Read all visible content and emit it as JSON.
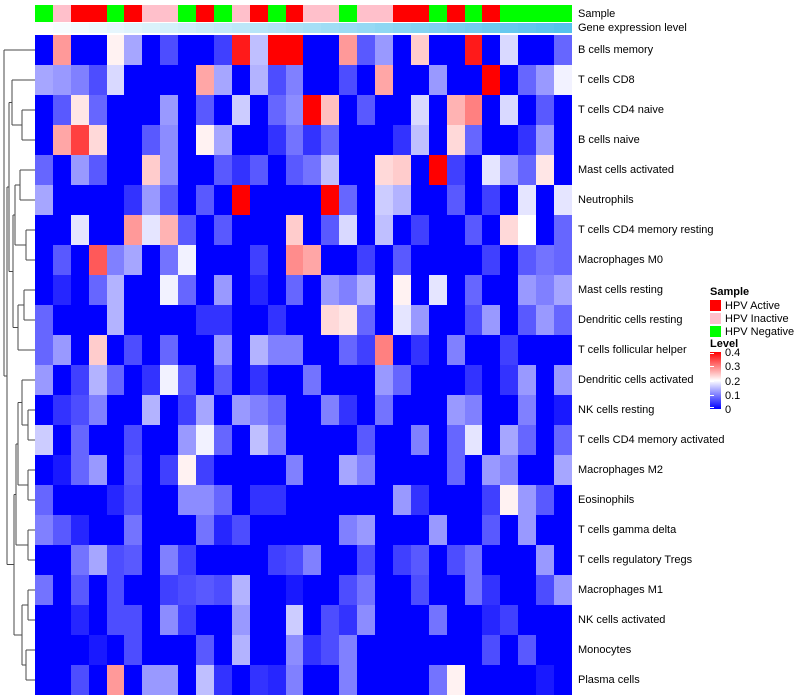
{
  "annotations": {
    "sample_label": "Sample",
    "gene_label": "Gene expression level",
    "sample_values": [
      "negative",
      "inactive",
      "active",
      "active",
      "negative",
      "active",
      "inactive",
      "inactive",
      "negative",
      "active",
      "negative",
      "inactive",
      "active",
      "negative",
      "active",
      "inactive",
      "inactive",
      "negative",
      "inactive",
      "inactive",
      "active",
      "active",
      "negative",
      "active",
      "negative",
      "active",
      "negative",
      "negative",
      "negative",
      "negative"
    ],
    "sample_colors": {
      "active": "#FF0000",
      "inactive": "#FFC0CB",
      "negative": "#00FF00"
    },
    "gene_gradient": {
      "start": "#FDFEFF",
      "end": "#55C2ED"
    }
  },
  "legend": {
    "sample_title": "Sample",
    "sample_items": [
      {
        "label": "HPV Active",
        "color": "#FF0000"
      },
      {
        "label": "HPV Inactive",
        "color": "#FFC0CB"
      },
      {
        "label": "HPV Negative",
        "color": "#00FF00"
      }
    ],
    "level_title": "Level",
    "level_ticks": [
      "0.4",
      "0.3",
      "0.2",
      "0.1",
      "0"
    ]
  },
  "chart_data": {
    "type": "heatmap",
    "n_cols": 30,
    "value_domain": [
      0,
      0.4
    ],
    "colormap": {
      "low": "#0000FF",
      "mid": "#FFFFFF",
      "high": "#FF0000",
      "mid_value": 0.2
    },
    "rows": [
      "B cells memory",
      "T cells CD8",
      "T cells CD4 naive",
      "B cells naive",
      "Mast cells activated",
      "Neutrophils",
      "T cells CD4 memory resting",
      "Macrophages M0",
      "Mast cells resting",
      "Dendritic cells resting",
      "T cells follicular helper",
      "Dendritic cells activated",
      "NK cells resting",
      "T cells CD4 memory activated",
      "Macrophages M2",
      "Eosinophils",
      "T cells gamma delta",
      "T cells regulatory  Tregs",
      "Macrophages M1",
      "NK cells activated",
      "Monocytes",
      "Plasma cells"
    ],
    "values": [
      [
        0,
        0.28,
        0,
        0,
        0.21,
        0.13,
        0,
        0.06,
        0,
        0,
        0.05,
        0.38,
        0.15,
        0.4,
        0.4,
        0,
        0,
        0.28,
        0.07,
        0.12,
        0,
        0.24,
        0,
        0,
        0.38,
        0,
        0.17,
        0,
        0,
        0.08
      ],
      [
        0.13,
        0.12,
        0.1,
        0.06,
        0.17,
        0,
        0,
        0,
        0,
        0.27,
        0.13,
        0,
        0.14,
        0.06,
        0.1,
        0,
        0,
        0.06,
        0,
        0.27,
        0,
        0,
        0.12,
        0,
        0,
        0.4,
        0,
        0.08,
        0.12,
        0.19
      ],
      [
        0,
        0.07,
        0.22,
        0.08,
        0,
        0,
        0,
        0.12,
        0,
        0.07,
        0,
        0.16,
        0,
        0.08,
        0.11,
        0.4,
        0.25,
        0,
        0.07,
        0,
        0,
        0.17,
        0,
        0.26,
        0.3,
        0,
        0.17,
        0,
        0.07,
        0
      ],
      [
        0,
        0.27,
        0.35,
        0.23,
        0,
        0,
        0.07,
        0.11,
        0,
        0.21,
        0.13,
        0,
        0,
        0.04,
        0.09,
        0.04,
        0.08,
        0,
        0,
        0,
        0.04,
        0.15,
        0,
        0.23,
        0.08,
        0,
        0,
        0.04,
        0.12,
        0
      ],
      [
        0.08,
        0,
        0.12,
        0.07,
        0,
        0,
        0.24,
        0.11,
        0,
        0,
        0.07,
        0.04,
        0.07,
        0,
        0.07,
        0.09,
        0.15,
        0,
        0,
        0.23,
        0.24,
        0,
        0.4,
        0.05,
        0,
        0.18,
        0.12,
        0.08,
        0.22,
        0
      ],
      [
        0.13,
        0,
        0,
        0,
        0,
        0.04,
        0.12,
        0.07,
        0,
        0.07,
        0,
        0.4,
        0,
        0,
        0,
        0,
        0.4,
        0.08,
        0,
        0.16,
        0.14,
        0,
        0,
        0.07,
        0,
        0.05,
        0,
        0.18,
        0,
        0.18
      ],
      [
        0,
        0,
        0.18,
        0,
        0,
        0.28,
        0.18,
        0.26,
        0.07,
        0,
        0.07,
        0,
        0,
        0,
        0.24,
        0,
        0.07,
        0.17,
        0,
        0.15,
        0,
        0.05,
        0,
        0,
        0.07,
        0,
        0.23,
        0.2,
        0,
        0.08
      ],
      [
        0,
        0.07,
        0,
        0.33,
        0.1,
        0.13,
        0,
        0.09,
        0.19,
        0,
        0,
        0,
        0.05,
        0,
        0.29,
        0.27,
        0,
        0,
        0.05,
        0,
        0.07,
        0,
        0,
        0,
        0,
        0.05,
        0,
        0.07,
        0.09,
        0.08
      ],
      [
        0,
        0.03,
        0,
        0.08,
        0.14,
        0,
        0,
        0.19,
        0.08,
        0,
        0.12,
        0,
        0.03,
        0,
        0.08,
        0,
        0.12,
        0.1,
        0.14,
        0,
        0.21,
        0,
        0.18,
        0,
        0.08,
        0,
        0,
        0.12,
        0.1,
        0.13
      ],
      [
        0.08,
        0,
        0,
        0,
        0.14,
        0,
        0,
        0,
        0,
        0.04,
        0.04,
        0,
        0,
        0.04,
        0,
        0,
        0.23,
        0.22,
        0.08,
        0,
        0.18,
        0.12,
        0,
        0,
        0.06,
        0.12,
        0,
        0.07,
        0.12,
        0.08
      ],
      [
        0.08,
        0.12,
        0,
        0.24,
        0,
        0.06,
        0,
        0.08,
        0,
        0,
        0.12,
        0,
        0.14,
        0.1,
        0.1,
        0,
        0,
        0.08,
        0.05,
        0.3,
        0,
        0.04,
        0,
        0.1,
        0,
        0,
        0.05,
        0,
        0,
        0
      ],
      [
        0.12,
        0,
        0.05,
        0.14,
        0.08,
        0,
        0.04,
        0.19,
        0.07,
        0,
        0.07,
        0,
        0.04,
        0,
        0,
        0.09,
        0,
        0,
        0,
        0.12,
        0.08,
        0,
        0,
        0,
        0.04,
        0,
        0.04,
        0.12,
        0,
        0.12
      ],
      [
        0,
        0.04,
        0.06,
        0.1,
        0,
        0,
        0.14,
        0,
        0.05,
        0.13,
        0,
        0.12,
        0.1,
        0.08,
        0,
        0,
        0.1,
        0.04,
        0,
        0.09,
        0,
        0,
        0,
        0.12,
        0.1,
        0,
        0,
        0.1,
        0,
        0.02
      ],
      [
        0.16,
        0,
        0.08,
        0,
        0,
        0.06,
        0,
        0,
        0.12,
        0.19,
        0.08,
        0,
        0.15,
        0.1,
        0,
        0,
        0,
        0,
        0.07,
        0,
        0,
        0.1,
        0,
        0.08,
        0.18,
        0,
        0.13,
        0.08,
        0,
        0.08
      ],
      [
        0,
        0.02,
        0.08,
        0.12,
        0,
        0.07,
        0,
        0.05,
        0.21,
        0.05,
        0,
        0,
        0,
        0,
        0.1,
        0,
        0,
        0.13,
        0.1,
        0,
        0,
        0,
        0,
        0.08,
        0,
        0.12,
        0.1,
        0,
        0,
        0.13
      ],
      [
        0.08,
        0,
        0,
        0,
        0.03,
        0.06,
        0,
        0,
        0.11,
        0.11,
        0.08,
        0,
        0.04,
        0.04,
        0,
        0,
        0,
        0,
        0,
        0,
        0.12,
        0.04,
        0,
        0,
        0,
        0.05,
        0.21,
        0.12,
        0.07,
        0
      ],
      [
        0.1,
        0.07,
        0.03,
        0,
        0,
        0.09,
        0,
        0,
        0,
        0.09,
        0.03,
        0.06,
        0,
        0,
        0,
        0,
        0,
        0.1,
        0.12,
        0,
        0,
        0,
        0.12,
        0,
        0,
        0.07,
        0,
        0.12,
        0,
        0
      ],
      [
        0,
        0,
        0.09,
        0.13,
        0.06,
        0.07,
        0,
        0.1,
        0.05,
        0,
        0,
        0,
        0,
        0.05,
        0.06,
        0.1,
        0,
        0,
        0.06,
        0,
        0.05,
        0.07,
        0,
        0.06,
        0.09,
        0,
        0,
        0,
        0.12,
        0
      ],
      [
        0.09,
        0,
        0.07,
        0,
        0.06,
        0,
        0,
        0.05,
        0.06,
        0.07,
        0.06,
        0.14,
        0,
        0,
        0.02,
        0,
        0,
        0.06,
        0.09,
        0,
        0,
        0.06,
        0,
        0,
        0.09,
        0.04,
        0,
        0,
        0.06,
        0.12
      ],
      [
        0,
        0,
        0.03,
        0,
        0.06,
        0.06,
        0,
        0.11,
        0.05,
        0,
        0,
        0.12,
        0,
        0,
        0.16,
        0,
        0.06,
        0.04,
        0.11,
        0,
        0,
        0,
        0.09,
        0,
        0,
        0.03,
        0.05,
        0,
        0,
        0
      ],
      [
        0,
        0,
        0,
        0.02,
        0,
        0.06,
        0,
        0,
        0,
        0.07,
        0,
        0.14,
        0,
        0,
        0.11,
        0.04,
        0.06,
        0.1,
        0,
        0,
        0,
        0,
        0,
        0,
        0,
        0.06,
        0,
        0.07,
        0,
        0
      ],
      [
        0,
        0,
        0.06,
        0,
        0.28,
        0,
        0.12,
        0.12,
        0,
        0.15,
        0.04,
        0,
        0.04,
        0.03,
        0.1,
        0,
        0,
        0.1,
        0,
        0,
        0,
        0,
        0.09,
        0.21,
        0,
        0,
        0,
        0,
        0.02,
        0
      ]
    ],
    "dendrogram_merges": [
      {
        "a": "L3",
        "b": "L4",
        "x": 22
      },
      {
        "a": "L2",
        "b": "N1",
        "x": 12
      },
      {
        "a": "L5",
        "b": "L6",
        "x": 20
      },
      {
        "a": "L7",
        "b": "L8",
        "x": 26
      },
      {
        "a": "N3",
        "b": "N4",
        "x": 15
      },
      {
        "a": "L9",
        "b": "L10",
        "x": 24
      },
      {
        "a": "N6",
        "b": "L11",
        "x": 18
      },
      {
        "a": "N5",
        "b": "N7",
        "x": 13
      },
      {
        "a": "N2",
        "b": "N8",
        "x": 9
      },
      {
        "a": "L13",
        "b": "L14",
        "x": 28
      },
      {
        "a": "L12",
        "b": "N10",
        "x": 22
      },
      {
        "a": "L15",
        "b": "L16",
        "x": 28
      },
      {
        "a": "N11",
        "b": "N12",
        "x": 18
      },
      {
        "a": "L17",
        "b": "L18",
        "x": 28
      },
      {
        "a": "N13",
        "b": "N14",
        "x": 16
      },
      {
        "a": "L19",
        "b": "L20",
        "x": 28
      },
      {
        "a": "L21",
        "b": "L22",
        "x": 26
      },
      {
        "a": "N16",
        "b": "N17",
        "x": 22
      },
      {
        "a": "N15",
        "b": "N18",
        "x": 14
      },
      {
        "a": "N9",
        "b": "N19",
        "x": 7
      },
      {
        "a": "L1",
        "b": "N20",
        "x": 4
      }
    ]
  }
}
